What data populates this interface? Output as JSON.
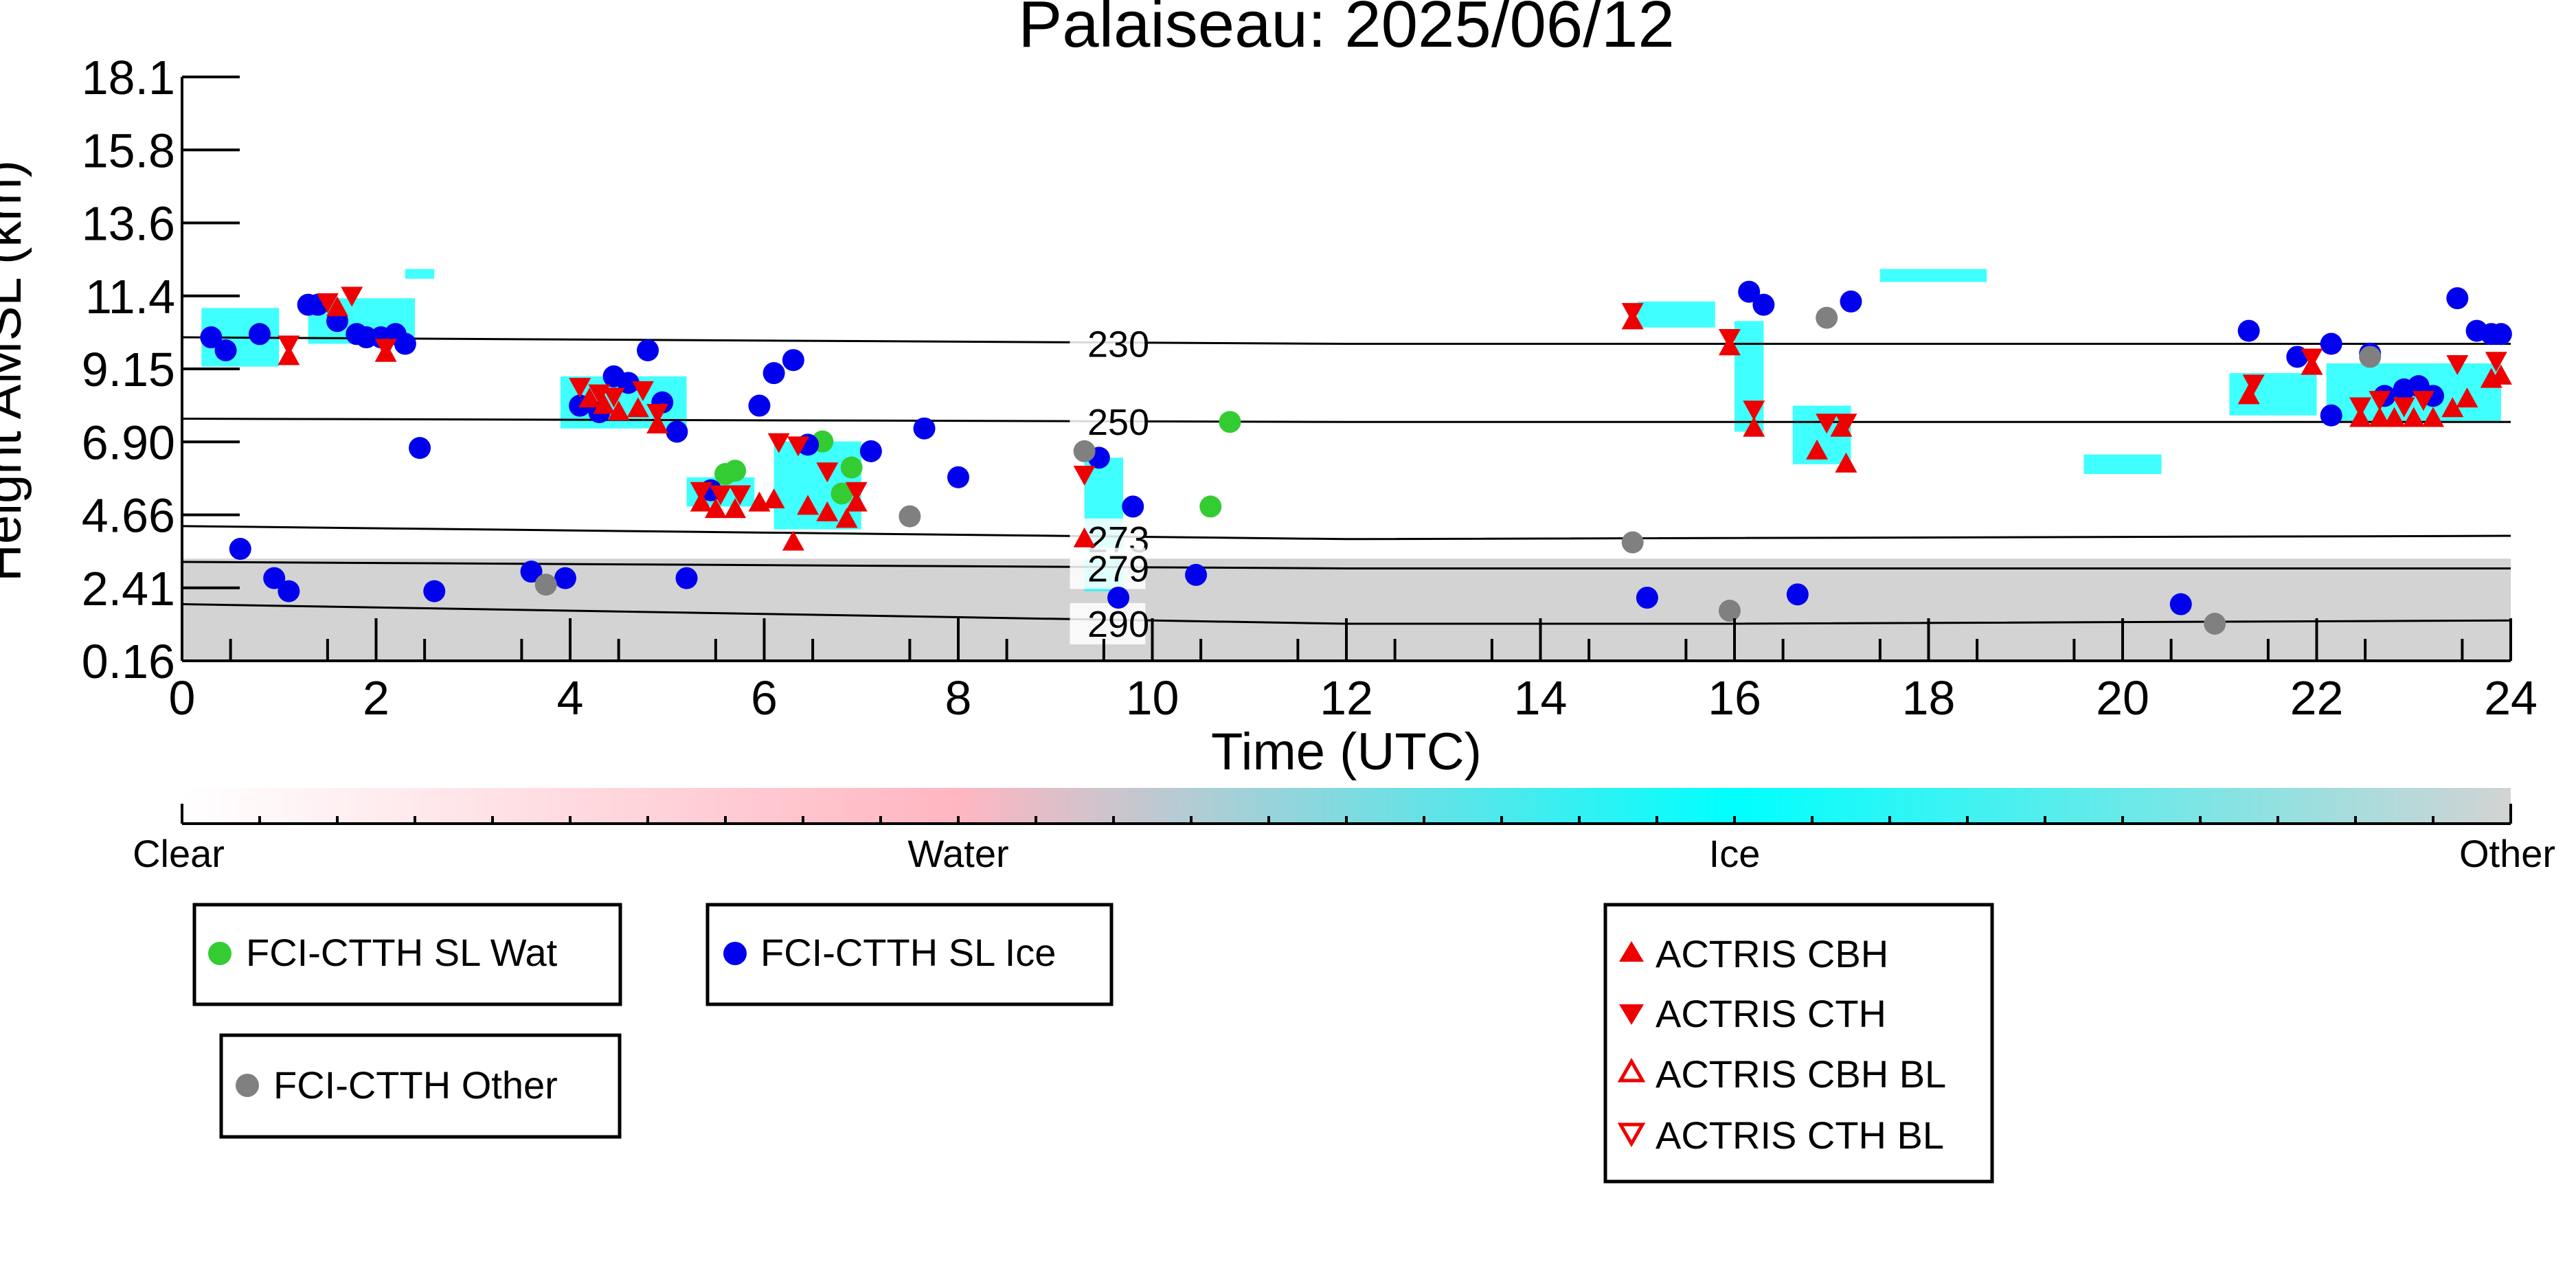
{
  "chart_data": {
    "type": "scatter",
    "title": "Palaiseau: 2025/06/12",
    "xlabel": "Time (UTC)",
    "ylabel": "Height AMSL (km)",
    "xlim": [
      0,
      24
    ],
    "ylim": [
      0.16,
      18.1
    ],
    "x_ticks": [
      "0",
      "2",
      "4",
      "6",
      "8",
      "10",
      "12",
      "14",
      "16",
      "18",
      "20",
      "22",
      "24"
    ],
    "y_ticks": [
      "0.16",
      "2.41",
      "4.66",
      "6.90",
      "9.15",
      "11.4",
      "13.6",
      "15.8",
      "18.1"
    ],
    "grid": false,
    "colorbar": {
      "labels": [
        "Clear",
        "Water",
        "Ice",
        "Other"
      ],
      "colors": [
        "#ffffff",
        "#ffb6c1",
        "#00ffff",
        "#d3d3d3"
      ]
    },
    "isotherms": [
      {
        "label": "230",
        "points": [
          [
            0,
            10.1
          ],
          [
            12,
            9.9
          ],
          [
            24,
            9.9
          ]
        ]
      },
      {
        "label": "250",
        "points": [
          [
            0,
            7.6
          ],
          [
            12,
            7.5
          ],
          [
            24,
            7.5
          ]
        ]
      },
      {
        "label": "273",
        "points": [
          [
            0,
            4.3
          ],
          [
            6,
            4.1
          ],
          [
            12,
            3.9
          ],
          [
            24,
            4.0
          ]
        ]
      },
      {
        "label": "279",
        "points": [
          [
            0,
            3.2
          ],
          [
            12,
            3.0
          ],
          [
            24,
            3.0
          ]
        ]
      },
      {
        "label": "290",
        "points": [
          [
            0,
            1.9
          ],
          [
            6,
            1.6
          ],
          [
            12,
            1.3
          ],
          [
            16,
            1.3
          ],
          [
            24,
            1.4
          ]
        ]
      }
    ],
    "series": [
      {
        "name": "FCI-CTTH SL Wat",
        "color": "#33cc33",
        "marker": "circle",
        "points": [
          [
            5.6,
            5.9
          ],
          [
            5.7,
            6.0
          ],
          [
            6.6,
            6.9
          ],
          [
            6.8,
            5.3
          ],
          [
            6.9,
            6.1
          ],
          [
            10.6,
            4.9
          ],
          [
            10.8,
            7.5
          ]
        ]
      },
      {
        "name": "FCI-CTTH SL Ice",
        "color": "#0000ee",
        "marker": "circle",
        "points": [
          [
            0.3,
            10.1
          ],
          [
            0.45,
            9.7
          ],
          [
            0.8,
            10.2
          ],
          [
            1.3,
            11.1
          ],
          [
            1.4,
            11.1
          ],
          [
            1.6,
            10.6
          ],
          [
            1.8,
            10.2
          ],
          [
            1.9,
            10.1
          ],
          [
            2.05,
            10.1
          ],
          [
            2.2,
            10.2
          ],
          [
            2.3,
            9.9
          ],
          [
            2.45,
            6.7
          ],
          [
            0.6,
            3.6
          ],
          [
            0.95,
            2.7
          ],
          [
            1.1,
            2.3
          ],
          [
            2.6,
            2.3
          ],
          [
            3.6,
            2.9
          ],
          [
            3.95,
            2.7
          ],
          [
            4.1,
            8.0
          ],
          [
            4.3,
            7.8
          ],
          [
            4.45,
            8.9
          ],
          [
            4.6,
            8.7
          ],
          [
            4.8,
            9.7
          ],
          [
            4.95,
            8.1
          ],
          [
            5.1,
            7.2
          ],
          [
            5.2,
            2.7
          ],
          [
            5.45,
            5.4
          ],
          [
            5.95,
            8.0
          ],
          [
            6.1,
            9.0
          ],
          [
            6.3,
            9.4
          ],
          [
            6.45,
            6.8
          ],
          [
            7.1,
            6.6
          ],
          [
            7.65,
            7.3
          ],
          [
            8.0,
            5.8
          ],
          [
            9.45,
            6.4
          ],
          [
            9.65,
            2.1
          ],
          [
            9.8,
            4.9
          ],
          [
            10.45,
            2.8
          ],
          [
            15.1,
            2.1
          ],
          [
            16.15,
            11.5
          ],
          [
            16.3,
            11.1
          ],
          [
            16.65,
            2.2
          ],
          [
            17.2,
            11.2
          ],
          [
            20.6,
            1.9
          ],
          [
            21.3,
            10.3
          ],
          [
            21.8,
            9.5
          ],
          [
            22.15,
            7.7
          ],
          [
            22.15,
            9.9
          ],
          [
            22.55,
            9.6
          ],
          [
            22.7,
            8.3
          ],
          [
            22.9,
            8.5
          ],
          [
            23.05,
            8.6
          ],
          [
            23.2,
            8.3
          ],
          [
            23.45,
            11.3
          ],
          [
            23.65,
            10.3
          ],
          [
            23.8,
            10.2
          ],
          [
            23.9,
            10.2
          ]
        ]
      },
      {
        "name": "FCI-CTTH Other",
        "color": "#808080",
        "marker": "circle",
        "points": [
          [
            3.75,
            2.5
          ],
          [
            7.5,
            4.6
          ],
          [
            9.3,
            6.6
          ],
          [
            14.95,
            3.8
          ],
          [
            15.95,
            1.7
          ],
          [
            16.95,
            10.7
          ],
          [
            20.95,
            1.3
          ],
          [
            22.55,
            9.5
          ]
        ]
      },
      {
        "name": "ACTRIS CBH",
        "color": "#ee0000",
        "marker": "triangle-up",
        "points": [
          [
            1.1,
            9.5
          ],
          [
            1.6,
            11.0
          ],
          [
            2.1,
            9.6
          ],
          [
            4.2,
            8.2
          ],
          [
            4.35,
            8.0
          ],
          [
            4.5,
            7.8
          ],
          [
            4.7,
            7.9
          ],
          [
            4.9,
            7.4
          ],
          [
            5.35,
            5.0
          ],
          [
            5.5,
            4.8
          ],
          [
            5.7,
            4.8
          ],
          [
            5.95,
            5.0
          ],
          [
            6.1,
            5.1
          ],
          [
            6.3,
            3.8
          ],
          [
            6.45,
            4.9
          ],
          [
            6.65,
            4.7
          ],
          [
            6.85,
            4.5
          ],
          [
            6.95,
            5.0
          ],
          [
            9.3,
            3.9
          ],
          [
            14.95,
            10.6
          ],
          [
            15.95,
            9.8
          ],
          [
            16.2,
            7.3
          ],
          [
            16.85,
            6.6
          ],
          [
            17.1,
            7.3
          ],
          [
            17.15,
            6.2
          ],
          [
            21.3,
            8.3
          ],
          [
            21.95,
            9.2
          ],
          [
            22.45,
            7.6
          ],
          [
            22.65,
            7.6
          ],
          [
            22.8,
            7.6
          ],
          [
            23.0,
            7.6
          ],
          [
            23.2,
            7.6
          ],
          [
            23.4,
            7.9
          ],
          [
            23.55,
            8.2
          ],
          [
            23.8,
            8.8
          ],
          [
            23.9,
            8.9
          ]
        ]
      },
      {
        "name": "ACTRIS CTH",
        "color": "#ee0000",
        "marker": "triangle-down",
        "points": [
          [
            1.1,
            9.9
          ],
          [
            1.5,
            11.2
          ],
          [
            1.75,
            11.4
          ],
          [
            2.1,
            9.8
          ],
          [
            4.1,
            8.6
          ],
          [
            4.3,
            8.4
          ],
          [
            4.45,
            8.3
          ],
          [
            4.75,
            8.5
          ],
          [
            4.9,
            7.8
          ],
          [
            5.35,
            5.4
          ],
          [
            5.55,
            5.3
          ],
          [
            5.75,
            5.3
          ],
          [
            6.15,
            6.9
          ],
          [
            6.35,
            6.8
          ],
          [
            6.65,
            6.0
          ],
          [
            6.95,
            5.4
          ],
          [
            9.3,
            5.9
          ],
          [
            14.95,
            10.9
          ],
          [
            15.95,
            10.1
          ],
          [
            16.2,
            7.9
          ],
          [
            16.95,
            7.5
          ],
          [
            17.15,
            7.5
          ],
          [
            21.35,
            8.7
          ],
          [
            21.95,
            9.5
          ],
          [
            22.45,
            8.0
          ],
          [
            22.65,
            8.2
          ],
          [
            22.9,
            8.0
          ],
          [
            23.1,
            8.2
          ],
          [
            23.45,
            9.3
          ],
          [
            23.85,
            9.4
          ]
        ]
      },
      {
        "name": "ACTRIS CBH BL",
        "color": "#ee0000",
        "marker": "triangle-up-open",
        "points": []
      },
      {
        "name": "ACTRIS CTH BL",
        "color": "#ee0000",
        "marker": "triangle-down-open",
        "points": []
      }
    ],
    "legend": [
      {
        "label": "FCI-CTTH SL Wat",
        "color": "#33cc33",
        "marker": "circle"
      },
      {
        "label": "FCI-CTTH SL Ice",
        "color": "#0000ee",
        "marker": "circle"
      },
      {
        "label": "FCI-CTTH Other",
        "color": "#808080",
        "marker": "circle"
      },
      {
        "label": "ACTRIS CBH",
        "color": "#ee0000",
        "marker": "triangle-up"
      },
      {
        "label": "ACTRIS CTH",
        "color": "#ee0000",
        "marker": "triangle-down"
      },
      {
        "label": "ACTRIS CBH BL",
        "color": "#ee0000",
        "marker": "triangle-up-open"
      },
      {
        "label": "ACTRIS CTH BL",
        "color": "#ee0000",
        "marker": "triangle-down-open"
      }
    ]
  }
}
